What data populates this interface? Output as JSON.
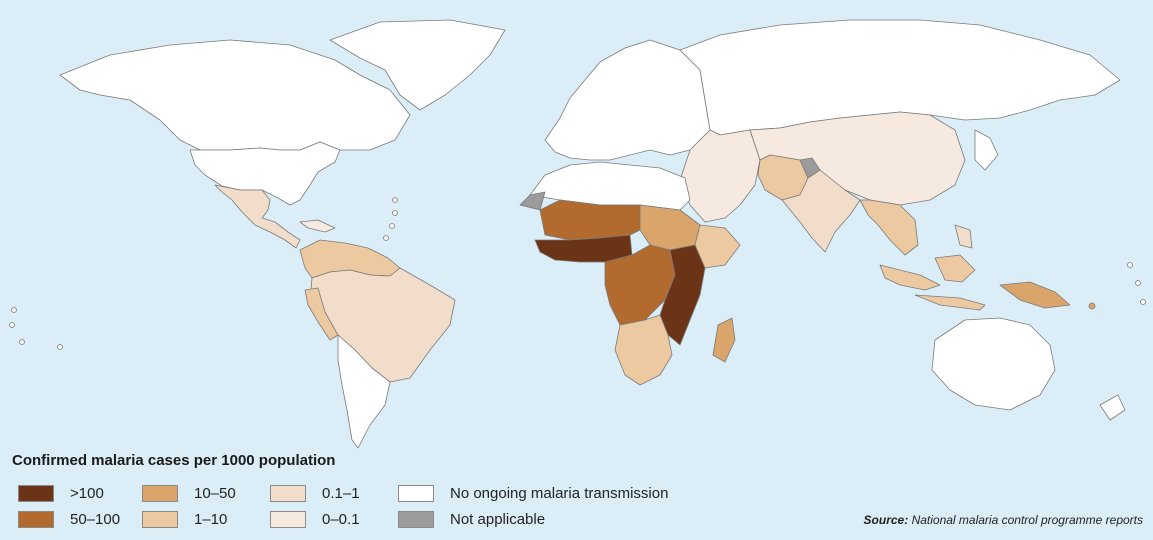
{
  "legend": {
    "title": "Confirmed malaria cases per 1000 population",
    "items": [
      {
        "label": ">100",
        "color": "#6b3416"
      },
      {
        "label": "50–100",
        "color": "#b36a2e"
      },
      {
        "label": "10–50",
        "color": "#d9a56b"
      },
      {
        "label": "1–10",
        "color": "#edc9a2"
      },
      {
        "label": "0.1–1",
        "color": "#f2ddca"
      },
      {
        "label": "0–0.1",
        "color": "#f5e9e0"
      },
      {
        "label": "No ongoing malaria transmission",
        "color": "#ffffff"
      },
      {
        "label": "Not applicable",
        "color": "#9b9b9b"
      }
    ]
  },
  "source": {
    "prefix": "Source:",
    "text": "National malaria control programme reports"
  },
  "colors": {
    "ocean": "#dbeef8",
    "border": "#7a7a7a"
  }
}
